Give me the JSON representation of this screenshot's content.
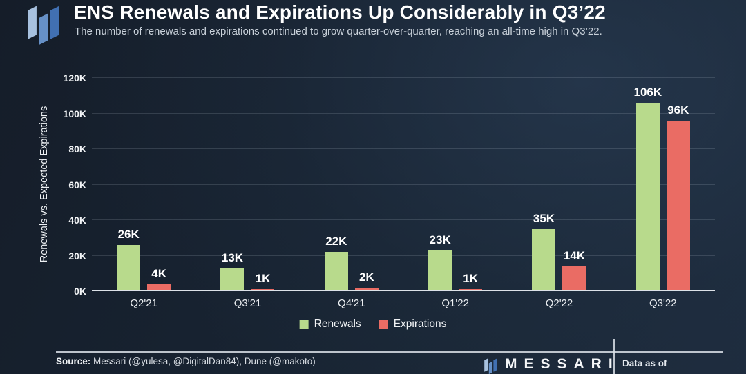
{
  "header": {
    "title": "ENS Renewals and Expirations Up Considerably in Q3’22",
    "subtitle": "The number of renewals and expirations continued to grow quarter-over-quarter, reaching an all-time high in Q3’22."
  },
  "brand": {
    "icon_colors": [
      "#a7c1df",
      "#6690c6",
      "#4170b2"
    ]
  },
  "chart_data": {
    "type": "bar",
    "categories": [
      "Q2'21",
      "Q3'21",
      "Q4'21",
      "Q1'22",
      "Q2'22",
      "Q3'22"
    ],
    "series": [
      {
        "name": "Renewals",
        "color": "#b8da8c",
        "values": [
          26,
          13,
          22,
          23,
          35,
          106
        ],
        "labels": [
          "26K",
          "13K",
          "22K",
          "23K",
          "35K",
          "106K"
        ]
      },
      {
        "name": "Expirations",
        "color": "#ea6c64",
        "values": [
          4,
          1,
          2,
          1,
          14,
          96
        ],
        "labels": [
          "4K",
          "1K",
          "2K",
          "1K",
          "14K",
          "96K"
        ]
      }
    ],
    "title": "ENS Renewals and Expirations Up Considerably in Q3'22",
    "xlabel": "",
    "ylabel": "Renewals vs. Expected Expirations",
    "yticks": [
      "0K",
      "20K",
      "40K",
      "60K",
      "80K",
      "100K",
      "120K"
    ],
    "ylim": [
      0,
      120
    ],
    "unit": "K",
    "grid": true,
    "legend_position": "bottom"
  },
  "footer": {
    "source_label": "Source:",
    "source_text": " Messari (@yulesa, @DigitalDan84), Dune (@makoto)",
    "brand_wordmark": "MESSARI",
    "data_as_of": "Data as of"
  }
}
